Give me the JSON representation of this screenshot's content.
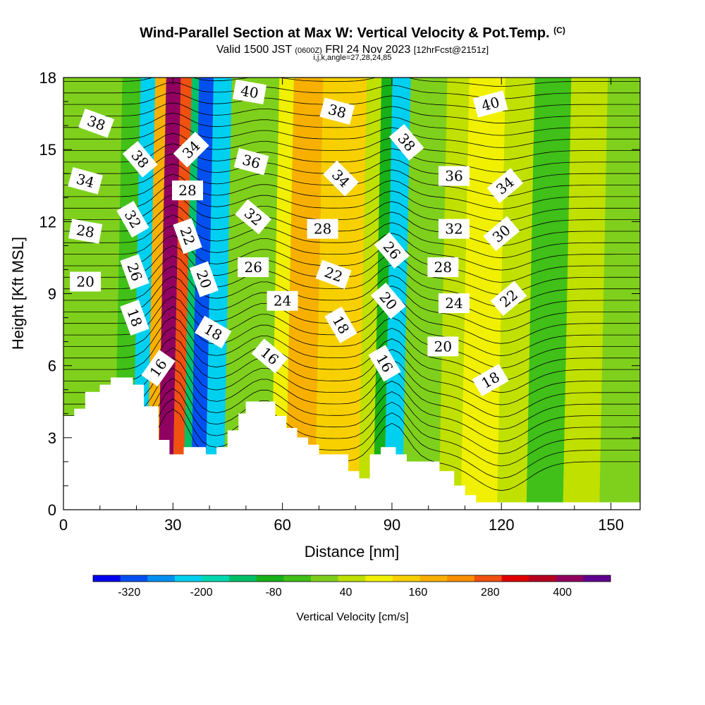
{
  "header": {
    "title": "Wind-Parallel Section at Max W: Vertical Velocity & Pot.Temp.",
    "copyright": "(C)",
    "valid_prefix": "Valid 1500 JST",
    "valid_utc": "(0600Z)",
    "valid_date": "FRI 24 Nov 2023",
    "forecast": "[12hrFcst@2151z]",
    "grid_info": "i,j,k,angle=27,28,24,85"
  },
  "chart_data": {
    "type": "heatmap",
    "xlabel": "Distance [nm]",
    "ylabel": "Height [Kft MSL]",
    "xlim": [
      0,
      158
    ],
    "ylim": [
      0,
      18
    ],
    "x_ticks": [
      0,
      30,
      60,
      90,
      120,
      150
    ],
    "y_ticks": [
      0,
      3,
      6,
      9,
      12,
      15,
      18
    ],
    "grid": false,
    "fill_variable": "Vertical Velocity [cm/s]",
    "contour_variable": "Potential Temperature (C)",
    "colorbar": {
      "label": "Vertical Velocity [cm/s]",
      "tick_labels": [
        "-320",
        "-200",
        "-80",
        "40",
        "160",
        "280",
        "400"
      ],
      "tick_values": [
        -320,
        -200,
        -80,
        40,
        160,
        280,
        400
      ],
      "colors": [
        "#0000f0",
        "#0050f0",
        "#0090f0",
        "#00d0f0",
        "#00d8b0",
        "#00c068",
        "#18b018",
        "#40c018",
        "#7fd01c",
        "#c0e000",
        "#f0f000",
        "#f8d000",
        "#f8b000",
        "#f89000",
        "#f05010",
        "#e00000",
        "#b80020",
        "#900060",
        "#600090"
      ]
    },
    "velocity_bands": [
      {
        "x": 0,
        "w": 15,
        "v": 0
      },
      {
        "x": 15,
        "w": 5,
        "v": -60
      },
      {
        "x": 20,
        "w": 4,
        "v": -220
      },
      {
        "x": 24,
        "w": 3,
        "v": 200
      },
      {
        "x": 27,
        "w": 4,
        "v": 400
      },
      {
        "x": 31,
        "w": 3,
        "v": 260
      },
      {
        "x": 34,
        "w": 2,
        "v": -120
      },
      {
        "x": 36,
        "w": 4,
        "v": -320
      },
      {
        "x": 40,
        "w": 5,
        "v": -200
      },
      {
        "x": 45,
        "w": 13,
        "v": 0
      },
      {
        "x": 58,
        "w": 4,
        "v": 80
      },
      {
        "x": 62,
        "w": 8,
        "v": 200
      },
      {
        "x": 70,
        "w": 4,
        "v": 160
      },
      {
        "x": 74,
        "w": 8,
        "v": 120
      },
      {
        "x": 82,
        "w": 4,
        "v": 40
      },
      {
        "x": 86,
        "w": 3,
        "v": -100
      },
      {
        "x": 89,
        "w": 5,
        "v": -240
      },
      {
        "x": 94,
        "w": 10,
        "v": 0
      },
      {
        "x": 104,
        "w": 6,
        "v": 40
      },
      {
        "x": 110,
        "w": 10,
        "v": 100
      },
      {
        "x": 120,
        "w": 8,
        "v": 40
      },
      {
        "x": 128,
        "w": 10,
        "v": -20
      },
      {
        "x": 138,
        "w": 10,
        "v": 40
      },
      {
        "x": 148,
        "w": 10,
        "v": 0
      }
    ],
    "terrain": [
      {
        "x": 0,
        "h": 3.9
      },
      {
        "x": 3,
        "h": 4.2
      },
      {
        "x": 6,
        "h": 4.9
      },
      {
        "x": 10,
        "h": 5.2
      },
      {
        "x": 13,
        "h": 5.5
      },
      {
        "x": 19,
        "h": 5.2
      },
      {
        "x": 22,
        "h": 4.3
      },
      {
        "x": 26,
        "h": 2.9
      },
      {
        "x": 29,
        "h": 2.3
      },
      {
        "x": 33,
        "h": 2.6
      },
      {
        "x": 39,
        "h": 2.3
      },
      {
        "x": 42,
        "h": 2.6
      },
      {
        "x": 45,
        "h": 3.3
      },
      {
        "x": 48,
        "h": 4.0
      },
      {
        "x": 50,
        "h": 4.5
      },
      {
        "x": 58,
        "h": 3.9
      },
      {
        "x": 61,
        "h": 3.4
      },
      {
        "x": 64,
        "h": 3.0
      },
      {
        "x": 67,
        "h": 2.7
      },
      {
        "x": 70,
        "h": 2.3
      },
      {
        "x": 78,
        "h": 1.6
      },
      {
        "x": 81,
        "h": 1.3
      },
      {
        "x": 84,
        "h": 2.3
      },
      {
        "x": 87,
        "h": 2.6
      },
      {
        "x": 91,
        "h": 2.3
      },
      {
        "x": 94,
        "h": 2.0
      },
      {
        "x": 103,
        "h": 1.6
      },
      {
        "x": 107,
        "h": 1.0
      },
      {
        "x": 110,
        "h": 0.6
      },
      {
        "x": 113,
        "h": 0.3
      },
      {
        "x": 158,
        "h": 0.3
      }
    ],
    "contour_labels": [
      {
        "text": "38",
        "x": 9,
        "y": 16.1,
        "angle": 20
      },
      {
        "text": "34",
        "x": 6,
        "y": 13.7,
        "angle": 15
      },
      {
        "text": "28",
        "x": 6,
        "y": 11.6,
        "angle": 10
      },
      {
        "text": "20",
        "x": 6,
        "y": 9.5,
        "angle": 0
      },
      {
        "text": "38",
        "x": 21,
        "y": 14.6,
        "angle": 50
      },
      {
        "text": "32",
        "x": 19,
        "y": 12.1,
        "angle": 60
      },
      {
        "text": "26",
        "x": 19.5,
        "y": 9.9,
        "angle": 70
      },
      {
        "text": "18",
        "x": 19.5,
        "y": 8.0,
        "angle": 70
      },
      {
        "text": "16",
        "x": 26,
        "y": 5.9,
        "angle": -55
      },
      {
        "text": "34",
        "x": 35,
        "y": 15.0,
        "angle": -45
      },
      {
        "text": "28",
        "x": 34,
        "y": 13.3,
        "angle": 0
      },
      {
        "text": "22",
        "x": 34,
        "y": 11.4,
        "angle": 70
      },
      {
        "text": "20",
        "x": 38.5,
        "y": 9.6,
        "angle": 70
      },
      {
        "text": "18",
        "x": 41,
        "y": 7.4,
        "angle": 30
      },
      {
        "text": "40",
        "x": 51,
        "y": 17.4,
        "angle": 10
      },
      {
        "text": "36",
        "x": 51.5,
        "y": 14.5,
        "angle": 15
      },
      {
        "text": "32",
        "x": 52,
        "y": 12.2,
        "angle": 40
      },
      {
        "text": "26",
        "x": 52,
        "y": 10.1,
        "angle": 0
      },
      {
        "text": "24",
        "x": 60,
        "y": 8.7,
        "angle": 0
      },
      {
        "text": "16",
        "x": 56.5,
        "y": 6.4,
        "angle": 40
      },
      {
        "text": "38",
        "x": 75,
        "y": 16.6,
        "angle": 15
      },
      {
        "text": "34",
        "x": 76,
        "y": 13.8,
        "angle": 45
      },
      {
        "text": "28",
        "x": 71,
        "y": 11.7,
        "angle": 0
      },
      {
        "text": "22",
        "x": 74,
        "y": 9.8,
        "angle": 20
      },
      {
        "text": "18",
        "x": 76,
        "y": 7.7,
        "angle": 60
      },
      {
        "text": "38",
        "x": 94,
        "y": 15.3,
        "angle": 50
      },
      {
        "text": "26",
        "x": 90,
        "y": 10.8,
        "angle": 50
      },
      {
        "text": "20",
        "x": 89,
        "y": 8.7,
        "angle": 50
      },
      {
        "text": "16",
        "x": 88,
        "y": 6.1,
        "angle": 60
      },
      {
        "text": "40",
        "x": 117,
        "y": 16.9,
        "angle": -15
      },
      {
        "text": "36",
        "x": 107,
        "y": 13.9,
        "angle": 0
      },
      {
        "text": "32",
        "x": 107,
        "y": 11.7,
        "angle": 0
      },
      {
        "text": "28",
        "x": 104,
        "y": 10.1,
        "angle": 0
      },
      {
        "text": "24",
        "x": 107,
        "y": 8.6,
        "angle": 0
      },
      {
        "text": "20",
        "x": 104,
        "y": 6.8,
        "angle": 0
      },
      {
        "text": "34",
        "x": 121,
        "y": 13.5,
        "angle": -40
      },
      {
        "text": "30",
        "x": 120,
        "y": 11.5,
        "angle": -40
      },
      {
        "text": "22",
        "x": 122,
        "y": 8.8,
        "angle": -40
      },
      {
        "text": "18",
        "x": 117,
        "y": 5.4,
        "angle": -30
      }
    ]
  }
}
